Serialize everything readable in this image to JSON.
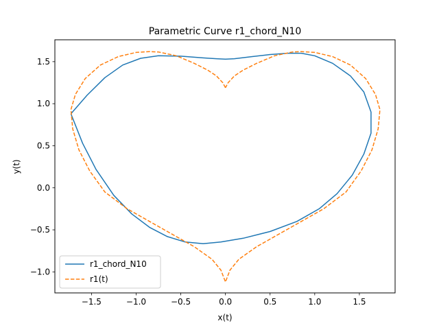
{
  "chart_data": {
    "type": "line",
    "title": "Parametric Curve r1_chord_N10",
    "xlabel": "x(t)",
    "ylabel": "y(t)",
    "xlim": [
      -1.91,
      1.9
    ],
    "ylim": [
      -1.25,
      1.76
    ],
    "xticks": [
      -1.5,
      -1.0,
      -0.5,
      0.0,
      0.5,
      1.0,
      1.5
    ],
    "xtick_labels": [
      "−1.5",
      "−1.0",
      "−0.5",
      "0.0",
      "0.5",
      "1.0",
      "1.5"
    ],
    "yticks": [
      -1.0,
      -0.5,
      0.0,
      0.5,
      1.0,
      1.5
    ],
    "ytick_labels": [
      "−1.0",
      "−0.5",
      "0.0",
      "0.5",
      "1.0",
      "1.5"
    ],
    "grid": false,
    "legend_position": "lower-left",
    "series": [
      {
        "name": "r1_chord_N10",
        "color": "#1f77b4",
        "style": "solid",
        "points": [
          [
            -1.73,
            0.88
          ],
          [
            -1.55,
            1.1
          ],
          [
            -1.35,
            1.31
          ],
          [
            -1.15,
            1.46
          ],
          [
            -0.95,
            1.54
          ],
          [
            -0.75,
            1.57
          ],
          [
            -0.5,
            1.565
          ],
          [
            -0.25,
            1.545
          ],
          [
            -0.1,
            1.535
          ],
          [
            0.0,
            1.53
          ],
          [
            0.1,
            1.535
          ],
          [
            0.3,
            1.56
          ],
          [
            0.5,
            1.585
          ],
          [
            0.7,
            1.6
          ],
          [
            0.85,
            1.6
          ],
          [
            1.0,
            1.57
          ],
          [
            1.2,
            1.48
          ],
          [
            1.4,
            1.33
          ],
          [
            1.55,
            1.14
          ],
          [
            1.63,
            0.9
          ],
          [
            1.63,
            0.65
          ],
          [
            1.55,
            0.4
          ],
          [
            1.42,
            0.15
          ],
          [
            1.25,
            -0.07
          ],
          [
            1.05,
            -0.25
          ],
          [
            0.8,
            -0.4
          ],
          [
            0.5,
            -0.52
          ],
          [
            0.2,
            -0.6
          ],
          [
            -0.05,
            -0.645
          ],
          [
            -0.25,
            -0.665
          ],
          [
            -0.45,
            -0.645
          ],
          [
            -0.65,
            -0.58
          ],
          [
            -0.85,
            -0.47
          ],
          [
            -1.05,
            -0.31
          ],
          [
            -1.25,
            -0.09
          ],
          [
            -1.45,
            0.22
          ],
          [
            -1.6,
            0.53
          ],
          [
            -1.73,
            0.88
          ]
        ]
      },
      {
        "name": "r1(t)",
        "color": "#ff7f0e",
        "style": "dashed",
        "points": [
          [
            0.0,
            1.19
          ],
          [
            -0.03,
            1.25
          ],
          [
            -0.1,
            1.33
          ],
          [
            -0.2,
            1.4
          ],
          [
            -0.35,
            1.48
          ],
          [
            -0.55,
            1.57
          ],
          [
            -0.75,
            1.615
          ],
          [
            -0.85,
            1.62
          ],
          [
            -1.0,
            1.61
          ],
          [
            -1.2,
            1.56
          ],
          [
            -1.4,
            1.46
          ],
          [
            -1.57,
            1.3
          ],
          [
            -1.68,
            1.11
          ],
          [
            -1.73,
            0.93
          ],
          [
            -1.71,
            0.7
          ],
          [
            -1.64,
            0.45
          ],
          [
            -1.52,
            0.2
          ],
          [
            -1.35,
            -0.05
          ],
          [
            -1.1,
            -0.25
          ],
          [
            -0.85,
            -0.4
          ],
          [
            -0.6,
            -0.55
          ],
          [
            -0.35,
            -0.7
          ],
          [
            -0.15,
            -0.85
          ],
          [
            -0.05,
            -0.98
          ],
          [
            0.0,
            -1.12
          ],
          [
            0.05,
            -0.98
          ],
          [
            0.15,
            -0.85
          ],
          [
            0.35,
            -0.7
          ],
          [
            0.6,
            -0.55
          ],
          [
            0.85,
            -0.4
          ],
          [
            1.1,
            -0.25
          ],
          [
            1.35,
            -0.05
          ],
          [
            1.52,
            0.2
          ],
          [
            1.64,
            0.45
          ],
          [
            1.71,
            0.7
          ],
          [
            1.73,
            0.93
          ],
          [
            1.68,
            1.11
          ],
          [
            1.57,
            1.3
          ],
          [
            1.4,
            1.46
          ],
          [
            1.2,
            1.56
          ],
          [
            1.0,
            1.61
          ],
          [
            0.85,
            1.62
          ],
          [
            0.75,
            1.615
          ],
          [
            0.55,
            1.57
          ],
          [
            0.35,
            1.48
          ],
          [
            0.2,
            1.4
          ],
          [
            0.1,
            1.33
          ],
          [
            0.03,
            1.25
          ],
          [
            0.0,
            1.19
          ]
        ]
      }
    ]
  }
}
